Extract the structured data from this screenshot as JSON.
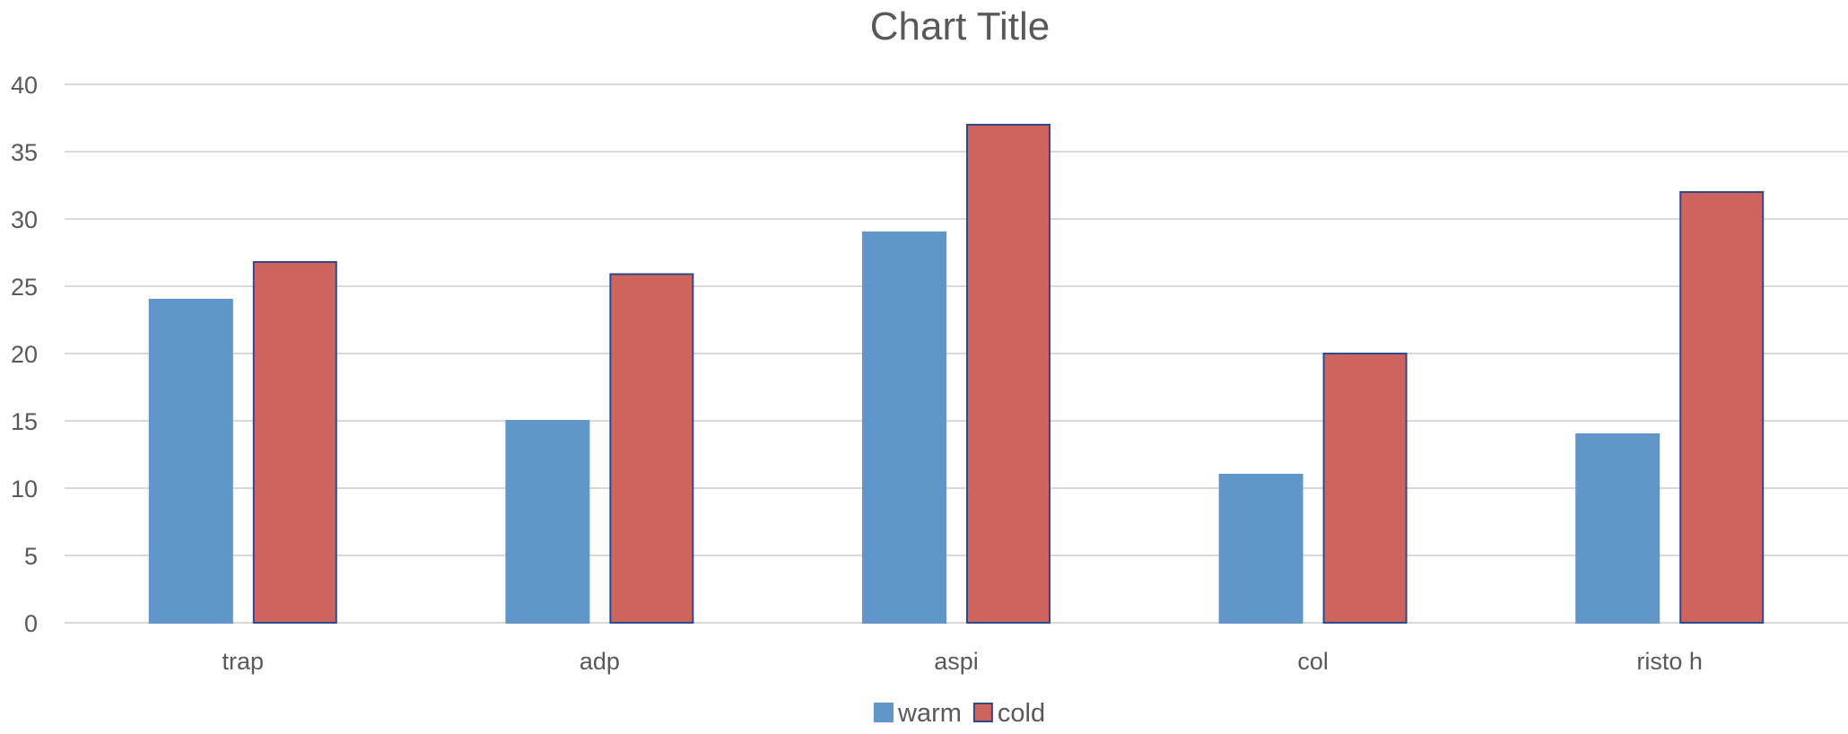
{
  "chart_data": {
    "type": "bar",
    "title": "Chart Title",
    "xlabel": "",
    "ylabel": "",
    "categories": [
      "trap",
      "adp",
      "aspi",
      "col",
      "risto h"
    ],
    "series": [
      {
        "name": "warm",
        "values": [
          24,
          15,
          29,
          11,
          14
        ],
        "color": "#6096c9",
        "border": "#6096c9"
      },
      {
        "name": "cold",
        "values": [
          26.8,
          25.9,
          37,
          20,
          32
        ],
        "color": "#cd645d",
        "border": "#2e4a8c"
      }
    ],
    "ylim": [
      0,
      40
    ],
    "yticks": [
      "0",
      "5",
      "10",
      "15",
      "20",
      "25",
      "30",
      "35",
      "40"
    ],
    "grid": true,
    "legend_position": "bottom"
  }
}
